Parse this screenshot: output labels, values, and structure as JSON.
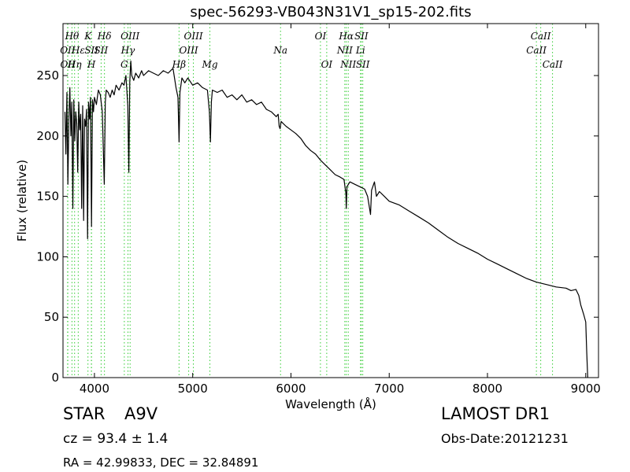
{
  "chart_data": {
    "type": "line",
    "title": "spec-56293-VB043N31V1_sp15-202.fits",
    "xlabel": "Wavelength (Å)",
    "ylabel": "Flux (relative)",
    "xlim": [
      3680,
      9130
    ],
    "ylim": [
      0,
      293
    ],
    "xticks": [
      4000,
      5000,
      6000,
      7000,
      8000,
      9000
    ],
    "yticks": [
      0,
      50,
      100,
      150,
      200,
      250
    ],
    "grid": false,
    "series": [
      {
        "color": "#000000",
        "x": [
          3700,
          3710,
          3720,
          3730,
          3740,
          3750,
          3760,
          3770,
          3780,
          3790,
          3800,
          3810,
          3820,
          3830,
          3840,
          3850,
          3860,
          3870,
          3880,
          3890,
          3900,
          3910,
          3920,
          3930,
          3940,
          3950,
          3960,
          3970,
          3980,
          3990,
          4000,
          4020,
          4040,
          4060,
          4080,
          4100,
          4110,
          4120,
          4140,
          4160,
          4180,
          4200,
          4220,
          4250,
          4280,
          4300,
          4320,
          4340,
          4350,
          4360,
          4370,
          4380,
          4400,
          4420,
          4450,
          4480,
          4500,
          4550,
          4600,
          4650,
          4700,
          4750,
          4800,
          4830,
          4850,
          4861,
          4870,
          4890,
          4920,
          4950,
          5000,
          5050,
          5100,
          5150,
          5170,
          5180,
          5190,
          5200,
          5250,
          5300,
          5350,
          5400,
          5450,
          5500,
          5550,
          5600,
          5650,
          5700,
          5750,
          5800,
          5850,
          5870,
          5880,
          5890,
          5900,
          5950,
          6000,
          6050,
          6100,
          6150,
          6200,
          6250,
          6300,
          6350,
          6400,
          6450,
          6500,
          6540,
          6560,
          6563,
          6570,
          6600,
          6650,
          6700,
          6750,
          6780,
          6800,
          6810,
          6820,
          6850,
          6870,
          6900,
          6950,
          7000,
          7100,
          7200,
          7300,
          7400,
          7500,
          7600,
          7700,
          7800,
          7900,
          8000,
          8100,
          8200,
          8300,
          8400,
          8500,
          8600,
          8700,
          8800,
          8850,
          8900,
          8930,
          8950,
          8980,
          9000,
          9010,
          9020
        ],
        "y": [
          220,
          185,
          236,
          160,
          215,
          240,
          200,
          228,
          140,
          230,
          196,
          220,
          210,
          170,
          228,
          205,
          218,
          140,
          225,
          130,
          214,
          208,
          222,
          115,
          228,
          214,
          232,
          125,
          230,
          220,
          232,
          226,
          238,
          234,
          220,
          160,
          228,
          238,
          236,
          232,
          238,
          234,
          242,
          238,
          244,
          242,
          250,
          225,
          170,
          245,
          262,
          250,
          246,
          252,
          248,
          254,
          250,
          254,
          252,
          250,
          254,
          252,
          256,
          240,
          232,
          195,
          236,
          248,
          244,
          248,
          242,
          244,
          240,
          238,
          220,
          195,
          228,
          238,
          236,
          238,
          232,
          234,
          230,
          234,
          228,
          230,
          226,
          228,
          222,
          220,
          216,
          218,
          208,
          206,
          212,
          208,
          205,
          202,
          198,
          192,
          188,
          185,
          180,
          176,
          172,
          168,
          166,
          164,
          152,
          140,
          158,
          162,
          160,
          158,
          156,
          150,
          140,
          135,
          155,
          162,
          150,
          154,
          150,
          146,
          143,
          138,
          133,
          128,
          122,
          116,
          111,
          107,
          103,
          98,
          94,
          90,
          86,
          82,
          79,
          77,
          75,
          74,
          72,
          73,
          68,
          60,
          52,
          46,
          22,
          0
        ]
      }
    ],
    "lines": {
      "color": "#33cc33",
      "items": [
        {
          "x": 3727,
          "label": "OII",
          "row": 2
        },
        {
          "x": 3729,
          "label": "OII",
          "row": 3
        },
        {
          "x": 3771,
          "label": "Hθ",
          "row": 1
        },
        {
          "x": 3798,
          "label": "Hη",
          "row": 3
        },
        {
          "x": 3835,
          "label": "Hε",
          "row": 2
        },
        {
          "x": 3934,
          "label": "K",
          "row": 1
        },
        {
          "x": 3969,
          "label": "H",
          "row": 3
        },
        {
          "x": 3970,
          "label": "SII",
          "row": 2
        },
        {
          "x": 4068,
          "label": "SII",
          "row": 2
        },
        {
          "x": 4102,
          "label": "Hδ",
          "row": 1
        },
        {
          "x": 4304,
          "label": "G",
          "row": 3
        },
        {
          "x": 4341,
          "label": "Hγ",
          "row": 2
        },
        {
          "x": 4363,
          "label": "OIII",
          "row": 1
        },
        {
          "x": 4861,
          "label": "Hβ",
          "row": 3
        },
        {
          "x": 4959,
          "label": "OIII",
          "row": 2
        },
        {
          "x": 5007,
          "label": "OIII",
          "row": 1
        },
        {
          "x": 5175,
          "label": "Mg",
          "row": 3
        },
        {
          "x": 5894,
          "label": "Na",
          "row": 2
        },
        {
          "x": 6300,
          "label": "OI",
          "row": 1
        },
        {
          "x": 6364,
          "label": "OI",
          "row": 3
        },
        {
          "x": 6548,
          "label": "NII",
          "row": 2
        },
        {
          "x": 6563,
          "label": "Hα",
          "row": 1
        },
        {
          "x": 6583,
          "label": "NII",
          "row": 3
        },
        {
          "x": 6708,
          "label": "Li",
          "row": 2
        },
        {
          "x": 6716,
          "label": "SII",
          "row": 1
        },
        {
          "x": 6731,
          "label": "SII",
          "row": 3
        },
        {
          "x": 8498,
          "label": "CaII",
          "row": 2
        },
        {
          "x": 8542,
          "label": "CaII",
          "row": 1
        },
        {
          "x": 8662,
          "label": "CaII",
          "row": 3
        }
      ]
    }
  },
  "footer": {
    "obj_class": "STAR",
    "obj_subclass": "A9V",
    "survey": "LAMOST DR1",
    "cz": "cz = 93.4  ± 1.4",
    "obs_date": "Obs-Date:20121231",
    "radec": "RA = 42.99833, DEC = 32.84891"
  }
}
